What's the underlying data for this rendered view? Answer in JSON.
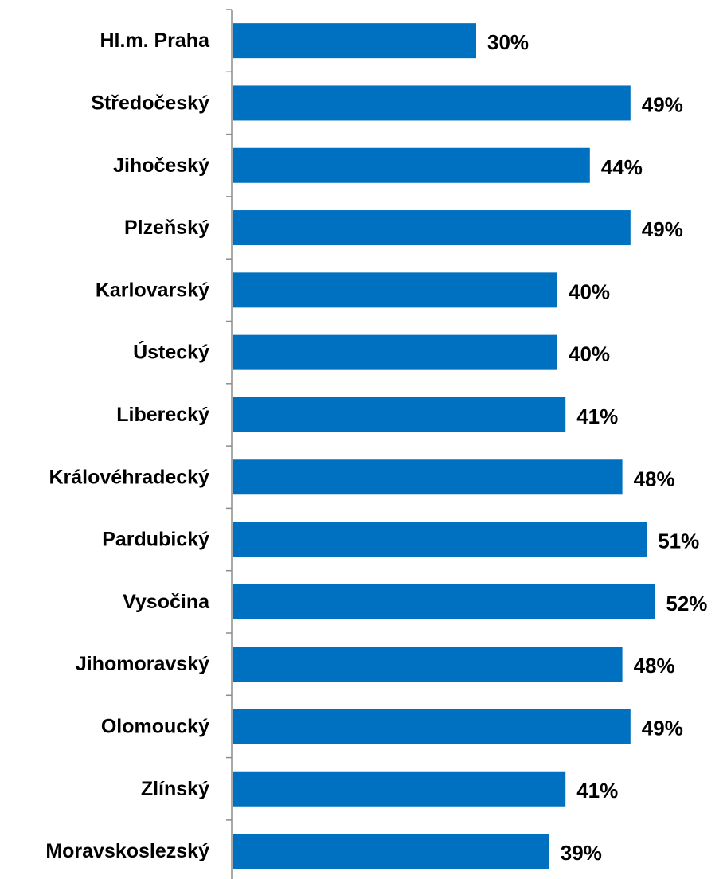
{
  "chart_data": {
    "type": "bar",
    "orientation": "horizontal",
    "categories": [
      "Hl.m. Praha",
      "Středočeský",
      "Jihočeský",
      "Plzeňský",
      "Karlovarský",
      "Ústecký",
      "Liberecký",
      "Královéhradecký",
      "Pardubický",
      "Vysočina",
      "Jihomoravský",
      "Olomoucký",
      "Zlínský",
      "Moravskoslezský"
    ],
    "values": [
      30,
      49,
      44,
      49,
      40,
      40,
      41,
      48,
      51,
      52,
      48,
      49,
      41,
      39
    ],
    "value_labels": [
      "30%",
      "49%",
      "44%",
      "49%",
      "40%",
      "40%",
      "41%",
      "48%",
      "51%",
      "52%",
      "48%",
      "49%",
      "41%",
      "39%"
    ],
    "unit": "%",
    "title": "",
    "xlabel": "",
    "ylabel": "",
    "xlim": [
      0,
      60
    ],
    "grid": false,
    "legend": "none",
    "colors": {
      "bar": "#0070C0",
      "axis": "#8c8c8c",
      "text": "#000000"
    }
  }
}
